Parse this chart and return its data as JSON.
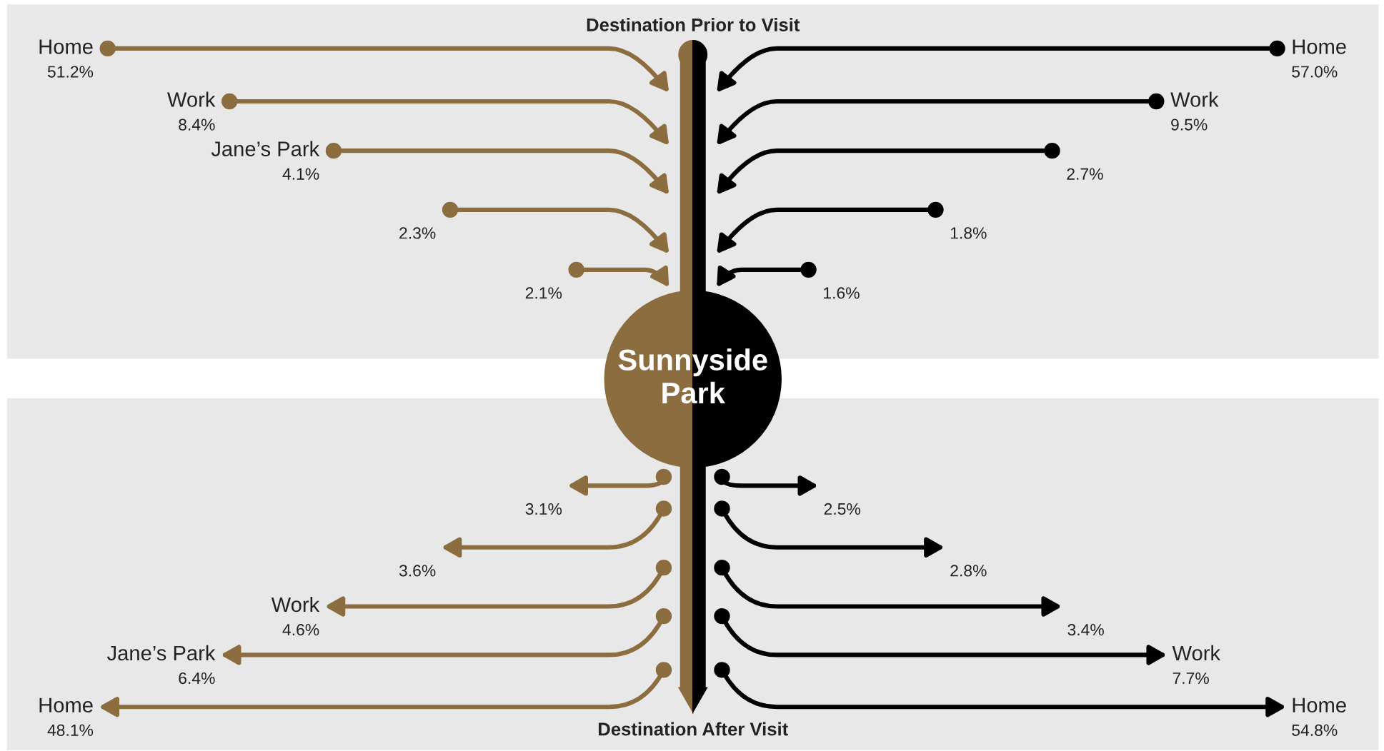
{
  "chart_data": [
    {
      "type": "other",
      "title": "Destination Prior to Visit",
      "annotations": [
        "Sunnyside\nPark"
      ],
      "categories": [
        "Home",
        "Work",
        "Jane’s Park",
        null,
        null
      ],
      "values": [
        51.2,
        8.4,
        4.1,
        2.3,
        2.1
      ],
      "value_labels": [
        "51.2%",
        "8.4%",
        "4.1%",
        "2.3%",
        "2.1%"
      ],
      "colors": [
        "#8b6d3f",
        "#8b6d3f",
        "#8b6d3f",
        "#8b6d3f",
        "#8b6d3f"
      ]
    },
    {
      "type": "other",
      "categories": [
        "Home",
        "Work",
        null,
        null,
        null
      ],
      "values": [
        57.0,
        9.5,
        2.7,
        1.8,
        1.6
      ],
      "value_labels": [
        "57.0%",
        "9.5%",
        "2.7%",
        "1.8%",
        "1.6%"
      ],
      "colors": [
        "#000000",
        "#000000",
        "#000000",
        "#000000",
        "#000000"
      ]
    },
    {
      "type": "other",
      "title": "Destination After Visit",
      "categories": [
        null,
        null,
        "Work",
        "Jane’s Park",
        "Home"
      ],
      "values": [
        3.1,
        3.6,
        4.6,
        6.4,
        48.1
      ],
      "value_labels": [
        "3.1%",
        "3.6%",
        "4.6%",
        "6.4%",
        "48.1%"
      ],
      "colors": [
        "#8b6d3f",
        "#8b6d3f",
        "#8b6d3f",
        "#8b6d3f",
        "#8b6d3f"
      ]
    },
    {
      "type": "other",
      "categories": [
        null,
        null,
        null,
        "Work",
        "Home"
      ],
      "values": [
        2.5,
        2.8,
        3.4,
        7.7,
        54.8
      ],
      "value_labels": [
        "2.5%",
        "2.8%",
        "3.4%",
        "7.7%",
        "54.8%"
      ],
      "colors": [
        "#000000",
        "#000000",
        "#000000",
        "#000000",
        "#000000"
      ]
    }
  ]
}
